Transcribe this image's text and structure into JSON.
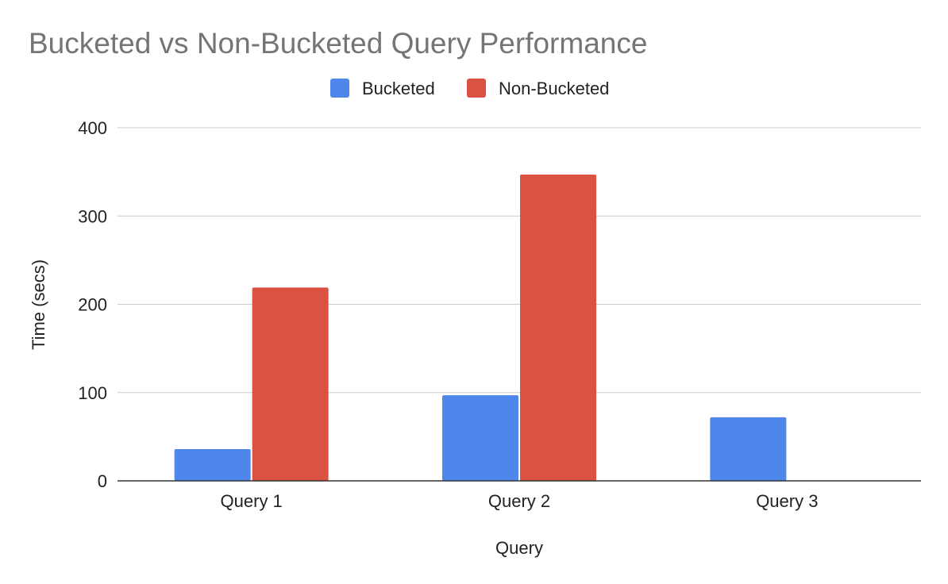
{
  "chart_data": {
    "type": "bar",
    "title": "Bucketed vs Non-Bucketed Query Performance",
    "xlabel": "Query",
    "ylabel": "Time (secs)",
    "categories": [
      "Query 1",
      "Query 2",
      "Query 3"
    ],
    "series": [
      {
        "name": "Bucketed",
        "color": "#4f86ec",
        "values": [
          36,
          97,
          72
        ]
      },
      {
        "name": "Non-Bucketed",
        "color": "#db5142",
        "values": [
          219,
          347,
          0
        ]
      }
    ],
    "ylim": [
      0,
      400
    ],
    "yticks": [
      0,
      100,
      200,
      300,
      400
    ],
    "grid": true,
    "legend_position": "top-center"
  }
}
